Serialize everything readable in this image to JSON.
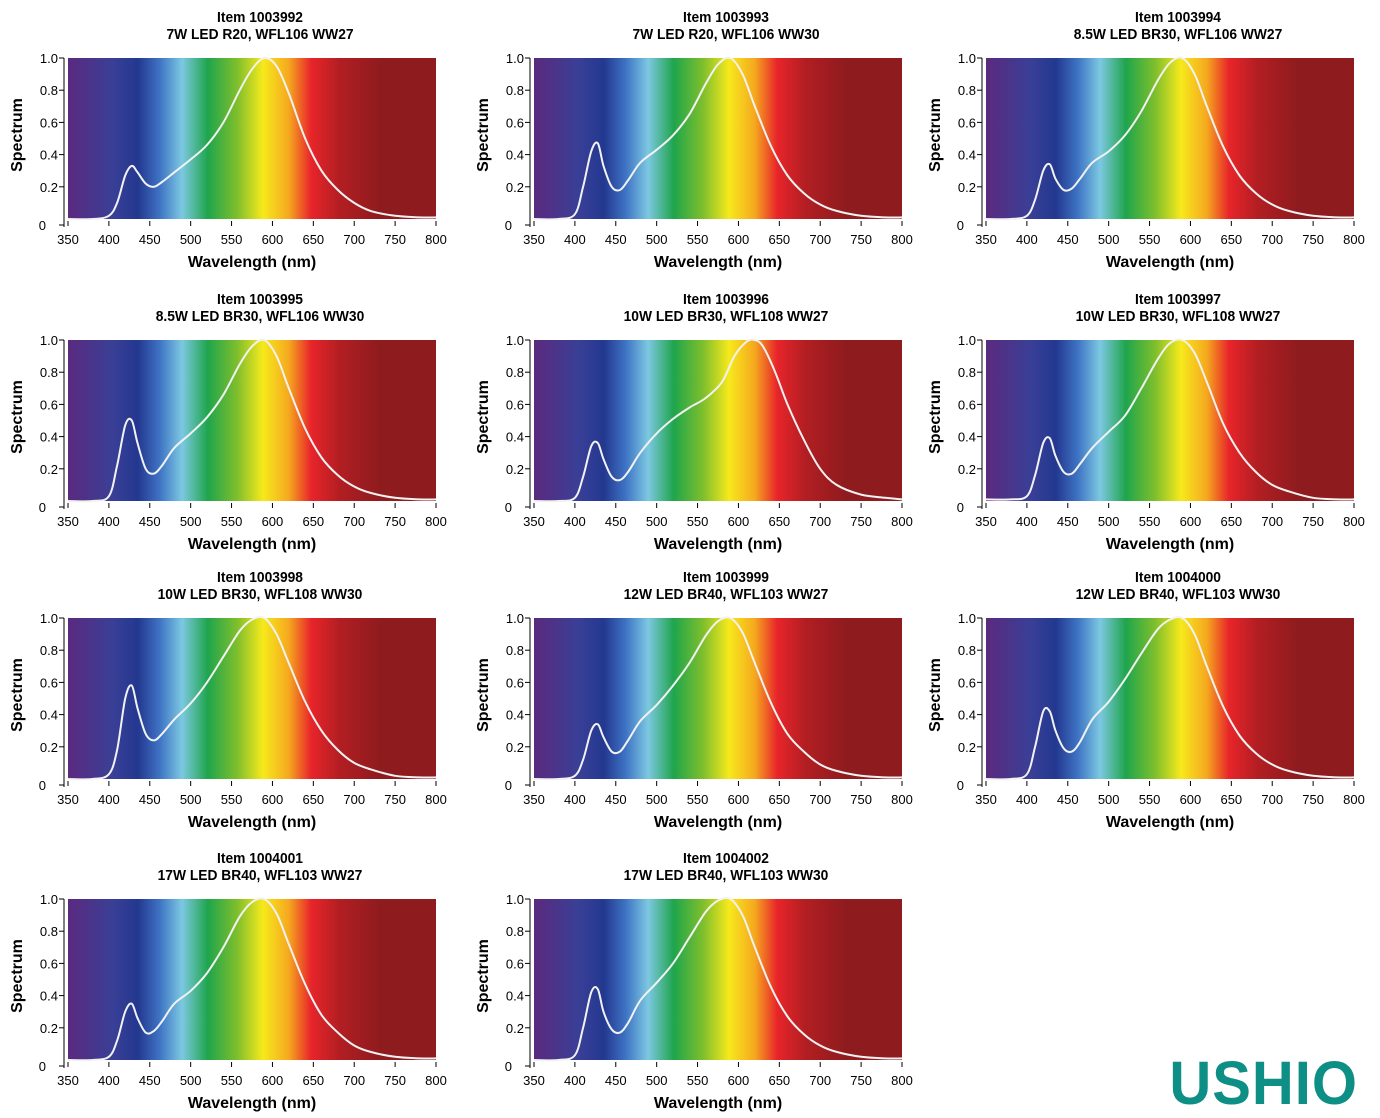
{
  "layout": {
    "cols": 3
  },
  "axis": {
    "xlabel": "Wavelength (nm)",
    "ylabel": "Spectrum",
    "xticks": [
      350,
      400,
      450,
      500,
      550,
      600,
      650,
      700,
      750,
      800
    ],
    "yticks": [
      "0",
      "0.2",
      "0.4",
      "0.6",
      "0.8",
      "1.0"
    ],
    "xlim": [
      350,
      800
    ],
    "ylim": [
      0,
      1.0
    ]
  },
  "colors": {
    "line": "#f2f2f2",
    "spectrum_stops": [
      "#5a2a7e",
      "#3a3f96",
      "#233890",
      "#3f74c4",
      "#7cc8e2",
      "#1fa54c",
      "#7fbf2c",
      "#f7e91c",
      "#f5a81f",
      "#e8252a",
      "#b11e22",
      "#8e1b1e"
    ],
    "logo": "#0d8f86"
  },
  "logo": {
    "text": "USHIO"
  },
  "chart_data": [
    {
      "type": "line",
      "title": "Item 1003992",
      "subtitle": "7W LED R20, WFL106 WW27",
      "x": [
        350,
        380,
        400,
        410,
        420,
        428,
        435,
        445,
        455,
        465,
        480,
        500,
        520,
        540,
        560,
        575,
        590,
        605,
        620,
        640,
        660,
        680,
        700,
        720,
        750,
        780,
        800
      ],
      "y": [
        0,
        0,
        0.02,
        0.1,
        0.27,
        0.33,
        0.29,
        0.22,
        0.2,
        0.23,
        0.29,
        0.37,
        0.46,
        0.6,
        0.8,
        0.93,
        1.0,
        0.95,
        0.78,
        0.5,
        0.3,
        0.18,
        0.1,
        0.05,
        0.02,
        0.01,
        0.01
      ]
    },
    {
      "type": "line",
      "title": "Item 1003993",
      "subtitle": "7W LED R20, WFL106 WW30",
      "x": [
        350,
        380,
        400,
        410,
        420,
        428,
        435,
        445,
        455,
        465,
        480,
        500,
        520,
        540,
        560,
        575,
        590,
        605,
        620,
        640,
        660,
        680,
        700,
        720,
        750,
        780,
        800
      ],
      "y": [
        0,
        0,
        0.03,
        0.2,
        0.42,
        0.47,
        0.33,
        0.2,
        0.18,
        0.24,
        0.35,
        0.43,
        0.52,
        0.65,
        0.84,
        0.96,
        1.0,
        0.9,
        0.7,
        0.45,
        0.27,
        0.16,
        0.09,
        0.05,
        0.02,
        0.01,
        0.01
      ]
    },
    {
      "type": "line",
      "title": "Item 1003994",
      "subtitle": "8.5W LED BR30, WFL106 WW27",
      "x": [
        350,
        380,
        400,
        410,
        420,
        428,
        435,
        445,
        455,
        465,
        480,
        500,
        520,
        540,
        560,
        575,
        590,
        605,
        620,
        640,
        660,
        680,
        700,
        720,
        750,
        780,
        800
      ],
      "y": [
        0,
        0,
        0.02,
        0.12,
        0.3,
        0.34,
        0.25,
        0.18,
        0.19,
        0.25,
        0.35,
        0.42,
        0.52,
        0.67,
        0.86,
        0.97,
        1.0,
        0.9,
        0.7,
        0.45,
        0.27,
        0.16,
        0.09,
        0.05,
        0.02,
        0.01,
        0.01
      ]
    },
    {
      "type": "line",
      "title": "Item 1003995",
      "subtitle": "8.5W LED BR30, WFL106 WW30",
      "x": [
        350,
        380,
        400,
        410,
        420,
        428,
        435,
        445,
        455,
        465,
        480,
        500,
        520,
        540,
        560,
        575,
        590,
        605,
        620,
        640,
        660,
        680,
        700,
        720,
        750,
        780,
        800
      ],
      "y": [
        0,
        0,
        0.03,
        0.22,
        0.47,
        0.5,
        0.36,
        0.2,
        0.17,
        0.22,
        0.33,
        0.42,
        0.52,
        0.66,
        0.85,
        0.96,
        1.0,
        0.9,
        0.7,
        0.45,
        0.27,
        0.16,
        0.09,
        0.05,
        0.02,
        0.01,
        0.01
      ]
    },
    {
      "type": "line",
      "title": "Item 1003996",
      "subtitle": "10W LED BR30, WFL108 WW27",
      "x": [
        350,
        380,
        400,
        410,
        420,
        428,
        435,
        445,
        455,
        465,
        480,
        500,
        520,
        540,
        560,
        580,
        595,
        610,
        620,
        630,
        645,
        660,
        680,
        700,
        720,
        750,
        780,
        800
      ],
      "y": [
        0,
        0,
        0.02,
        0.15,
        0.34,
        0.36,
        0.26,
        0.15,
        0.13,
        0.18,
        0.3,
        0.42,
        0.51,
        0.58,
        0.64,
        0.74,
        0.9,
        0.99,
        1.0,
        0.96,
        0.8,
        0.6,
        0.38,
        0.2,
        0.1,
        0.04,
        0.02,
        0.01
      ]
    },
    {
      "type": "line",
      "title": "Item 1003997",
      "subtitle": "10W LED BR30, WFL108 WW27",
      "x": [
        350,
        380,
        400,
        410,
        420,
        428,
        435,
        445,
        455,
        465,
        480,
        500,
        520,
        540,
        560,
        575,
        590,
        605,
        620,
        640,
        660,
        680,
        700,
        720,
        750,
        780,
        800
      ],
      "y": [
        0.01,
        0.01,
        0.03,
        0.16,
        0.36,
        0.39,
        0.28,
        0.18,
        0.17,
        0.23,
        0.33,
        0.43,
        0.53,
        0.7,
        0.88,
        0.98,
        1.0,
        0.92,
        0.74,
        0.48,
        0.3,
        0.18,
        0.1,
        0.06,
        0.02,
        0.01,
        0.01
      ]
    },
    {
      "type": "line",
      "title": "Item 1003998",
      "subtitle": "10W LED BR30, WFL108 WW30",
      "x": [
        350,
        380,
        400,
        410,
        420,
        428,
        435,
        445,
        455,
        465,
        480,
        500,
        520,
        540,
        560,
        575,
        590,
        605,
        620,
        640,
        660,
        680,
        700,
        720,
        750,
        780,
        800
      ],
      "y": [
        0,
        0,
        0.03,
        0.18,
        0.5,
        0.58,
        0.44,
        0.28,
        0.24,
        0.28,
        0.37,
        0.47,
        0.6,
        0.76,
        0.92,
        0.99,
        1.0,
        0.9,
        0.72,
        0.48,
        0.3,
        0.18,
        0.1,
        0.06,
        0.02,
        0.01,
        0.01
      ]
    },
    {
      "type": "line",
      "title": "Item 1003999",
      "subtitle": "12W LED BR40, WFL103 WW27",
      "x": [
        350,
        380,
        400,
        410,
        420,
        428,
        435,
        445,
        455,
        465,
        480,
        500,
        520,
        540,
        560,
        575,
        590,
        605,
        620,
        640,
        660,
        680,
        700,
        720,
        750,
        780,
        800
      ],
      "y": [
        0,
        0,
        0.02,
        0.12,
        0.3,
        0.34,
        0.26,
        0.17,
        0.17,
        0.24,
        0.36,
        0.46,
        0.58,
        0.72,
        0.89,
        0.98,
        1.0,
        0.91,
        0.72,
        0.47,
        0.28,
        0.17,
        0.09,
        0.05,
        0.02,
        0.01,
        0.01
      ]
    },
    {
      "type": "line",
      "title": "Item 1004000",
      "subtitle": "12W LED BR40, WFL103 WW30",
      "x": [
        350,
        380,
        400,
        410,
        420,
        428,
        435,
        445,
        455,
        465,
        480,
        500,
        520,
        540,
        560,
        575,
        590,
        605,
        620,
        640,
        660,
        680,
        700,
        720,
        750,
        780,
        800
      ],
      "y": [
        0,
        0,
        0.03,
        0.2,
        0.42,
        0.42,
        0.3,
        0.19,
        0.17,
        0.23,
        0.37,
        0.48,
        0.62,
        0.78,
        0.93,
        0.99,
        1.0,
        0.9,
        0.7,
        0.45,
        0.27,
        0.16,
        0.09,
        0.05,
        0.02,
        0.01,
        0.01
      ]
    },
    {
      "type": "line",
      "title": "Item 1004001",
      "subtitle": "17W LED BR40, WFL103 WW27",
      "x": [
        350,
        380,
        400,
        410,
        420,
        428,
        435,
        445,
        455,
        465,
        480,
        500,
        520,
        540,
        560,
        575,
        590,
        605,
        620,
        640,
        660,
        680,
        700,
        720,
        750,
        780,
        800
      ],
      "y": [
        0,
        0,
        0.02,
        0.12,
        0.3,
        0.35,
        0.26,
        0.17,
        0.18,
        0.24,
        0.35,
        0.43,
        0.54,
        0.7,
        0.89,
        0.98,
        1.0,
        0.91,
        0.72,
        0.47,
        0.28,
        0.17,
        0.09,
        0.05,
        0.02,
        0.01,
        0.01
      ]
    },
    {
      "type": "line",
      "title": "Item 1004002",
      "subtitle": "17W LED BR40, WFL103 WW30",
      "x": [
        350,
        380,
        400,
        410,
        420,
        428,
        435,
        445,
        455,
        465,
        480,
        500,
        520,
        540,
        560,
        575,
        590,
        605,
        620,
        640,
        660,
        680,
        700,
        720,
        750,
        780,
        800
      ],
      "y": [
        0,
        0,
        0.03,
        0.2,
        0.42,
        0.44,
        0.3,
        0.19,
        0.17,
        0.23,
        0.37,
        0.48,
        0.6,
        0.76,
        0.92,
        0.99,
        1.0,
        0.9,
        0.7,
        0.45,
        0.27,
        0.16,
        0.09,
        0.05,
        0.02,
        0.01,
        0.01
      ]
    }
  ]
}
